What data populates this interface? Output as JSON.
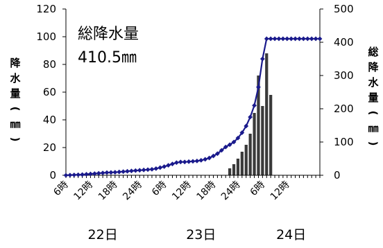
{
  "chart_data": {
    "type": "bar",
    "subtype": "bar-and-line-dual-axis",
    "annotation": {
      "title": "総降水量",
      "value": "410.5㎜"
    },
    "left_axis": {
      "label_chars": [
        "降",
        "水",
        "量",
        "(",
        "㎜",
        ")"
      ],
      "ylim": [
        0,
        120
      ],
      "ticks": [
        0,
        20,
        40,
        60,
        80,
        100,
        120
      ]
    },
    "right_axis": {
      "label_chars": [
        "総",
        "降",
        "水",
        "量",
        "(",
        "㎜",
        ")"
      ],
      "ylim": [
        0,
        500
      ],
      "ticks": [
        0,
        100,
        200,
        300,
        400,
        500
      ]
    },
    "x_axis": {
      "hours_start": 6,
      "hours_count": 63,
      "tick_labels": [
        {
          "hour": 0,
          "label": "6時"
        },
        {
          "hour": 6,
          "label": "12時"
        },
        {
          "hour": 12,
          "label": "18時"
        },
        {
          "hour": 18,
          "label": "24時"
        },
        {
          "hour": 24,
          "label": "6時"
        },
        {
          "hour": 30,
          "label": "12時"
        },
        {
          "hour": 36,
          "label": "18時"
        },
        {
          "hour": 42,
          "label": "24時"
        },
        {
          "hour": 48,
          "label": "6時"
        },
        {
          "hour": 54,
          "label": "12時"
        }
      ],
      "day_labels": [
        {
          "hour": 9,
          "label": "22日"
        },
        {
          "hour": 33,
          "label": "23日"
        },
        {
          "hour": 55,
          "label": "24日"
        }
      ]
    },
    "series": [
      {
        "type": "bar",
        "axis": "left",
        "color": "#3a3a3a",
        "values": [
          0,
          0,
          0,
          0,
          0,
          0,
          0,
          0,
          0,
          0,
          0,
          0,
          0,
          0,
          0,
          0,
          0,
          0,
          0,
          0,
          0,
          0,
          0,
          0,
          0,
          0,
          0,
          0,
          0,
          0,
          0,
          0,
          0,
          0,
          0,
          0,
          0,
          0,
          0,
          0,
          5,
          8,
          12,
          17,
          22,
          30,
          45,
          72,
          50,
          88,
          58,
          0,
          0,
          0,
          0,
          0,
          0,
          0,
          0,
          0,
          0,
          0,
          0
        ]
      },
      {
        "type": "line",
        "axis": "right",
        "color": "#1a1a8c",
        "values": [
          0,
          0.5,
          1,
          1.5,
          2,
          3,
          4,
          5,
          6,
          7,
          8,
          8.5,
          9,
          10,
          11,
          12,
          13,
          14,
          15,
          16,
          17,
          18,
          20,
          23,
          26,
          30,
          34,
          38,
          40,
          40,
          41,
          42,
          43,
          45,
          48,
          52,
          58,
          65,
          75,
          85,
          92,
          100,
          112,
          128,
          148,
          175,
          210,
          265,
          350,
          410.5,
          410.5,
          410.5,
          410.5,
          410.5,
          410.5,
          410.5,
          410.5,
          410.5,
          410.5,
          410.5,
          410.5,
          410.5,
          410.5
        ]
      }
    ]
  }
}
